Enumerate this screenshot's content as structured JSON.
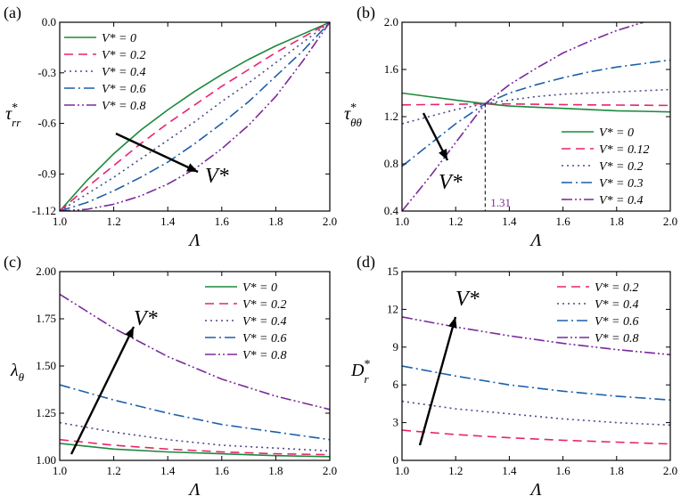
{
  "chart_data": [
    {
      "id": "a",
      "type": "line",
      "panel_label": "(a)",
      "xlabel": "Λ",
      "ylabel_main": "τ",
      "ylabel_sup": "*",
      "ylabel_sub": "rr",
      "xlim": [
        1.0,
        2.0
      ],
      "ylim": [
        -1.12,
        0.0
      ],
      "xticks": [
        "1.0",
        "1.2",
        "1.4",
        "1.6",
        "1.8",
        "2.0"
      ],
      "yticks": [
        {
          "v": 0.0,
          "label": "0.0"
        },
        {
          "v": -0.3,
          "label": "-0.3"
        },
        {
          "v": -0.6,
          "label": "-0.6"
        },
        {
          "v": -0.9,
          "label": "-0.9"
        },
        {
          "v": -1.12,
          "label": "-1.12"
        }
      ],
      "legend_position": "top-left",
      "arrow_label": "V*",
      "series": [
        {
          "name": "V* = 0",
          "color": "#1a8a3c",
          "dash": "",
          "x": [
            1.0,
            1.1,
            1.2,
            1.3,
            1.4,
            1.5,
            1.6,
            1.7,
            1.8,
            1.9,
            2.0
          ],
          "y": [
            -1.12,
            -0.94,
            -0.78,
            -0.64,
            -0.52,
            -0.41,
            -0.31,
            -0.22,
            -0.14,
            -0.07,
            0.0
          ]
        },
        {
          "name": "V* = 0.2",
          "color": "#e8246e",
          "dash": "10,6",
          "x": [
            1.0,
            1.1,
            1.2,
            1.3,
            1.4,
            1.5,
            1.6,
            1.7,
            1.8,
            1.9,
            2.0
          ],
          "y": [
            -1.12,
            -0.98,
            -0.85,
            -0.72,
            -0.6,
            -0.49,
            -0.38,
            -0.28,
            -0.18,
            -0.09,
            0.0
          ]
        },
        {
          "name": "V* = 0.4",
          "color": "#4a4a8c",
          "dash": "2,4",
          "x": [
            1.0,
            1.1,
            1.2,
            1.3,
            1.4,
            1.5,
            1.6,
            1.7,
            1.8,
            1.9,
            2.0
          ],
          "y": [
            -1.12,
            -1.02,
            -0.92,
            -0.81,
            -0.7,
            -0.59,
            -0.47,
            -0.36,
            -0.24,
            -0.12,
            0.0
          ]
        },
        {
          "name": "V* = 0.6",
          "color": "#1d5fa8",
          "dash": "12,4,2,4",
          "x": [
            1.0,
            1.1,
            1.2,
            1.3,
            1.4,
            1.5,
            1.6,
            1.7,
            1.8,
            1.9,
            2.0
          ],
          "y": [
            -1.12,
            -1.07,
            -1.0,
            -0.92,
            -0.83,
            -0.72,
            -0.6,
            -0.47,
            -0.32,
            -0.17,
            0.0
          ]
        },
        {
          "name": "V* = 0.8",
          "color": "#7a2a9a",
          "dash": "12,3,2,3,2,3",
          "x": [
            1.0,
            1.1,
            1.2,
            1.3,
            1.4,
            1.5,
            1.6,
            1.7,
            1.8,
            1.9,
            2.0
          ],
          "y": [
            -1.12,
            -1.11,
            -1.08,
            -1.03,
            -0.96,
            -0.87,
            -0.75,
            -0.61,
            -0.44,
            -0.23,
            0.0
          ]
        }
      ]
    },
    {
      "id": "b",
      "type": "line",
      "panel_label": "(b)",
      "xlabel": "Λ",
      "ylabel_main": "τ",
      "ylabel_sup": "*",
      "ylabel_sub": "θθ",
      "xlim": [
        1.0,
        2.0
      ],
      "ylim": [
        0.4,
        2.0
      ],
      "xticks": [
        "1.0",
        "1.2",
        "1.4",
        "1.6",
        "1.8",
        "2.0"
      ],
      "yticks": [
        {
          "v": 0.4,
          "label": "0.4"
        },
        {
          "v": 0.8,
          "label": "0.8"
        },
        {
          "v": 1.2,
          "label": "1.2"
        },
        {
          "v": 1.6,
          "label": "1.6"
        },
        {
          "v": 2.0,
          "label": "2.0"
        }
      ],
      "legend_position": "bottom-right",
      "arrow_label": "V*",
      "annotation": "1.31",
      "annotation_x": 1.31,
      "annotation_y": 1.31,
      "series": [
        {
          "name": "V* = 0",
          "color": "#1a8a3c",
          "dash": "",
          "x": [
            1.0,
            1.1,
            1.2,
            1.31,
            1.4,
            1.5,
            1.6,
            1.7,
            1.8,
            1.9,
            2.0
          ],
          "y": [
            1.4,
            1.37,
            1.34,
            1.31,
            1.29,
            1.28,
            1.27,
            1.26,
            1.25,
            1.245,
            1.24
          ]
        },
        {
          "name": "V* = 0.12",
          "color": "#e8246e",
          "dash": "10,6",
          "x": [
            1.0,
            1.2,
            1.31,
            1.5,
            1.7,
            2.0
          ],
          "y": [
            1.3,
            1.305,
            1.31,
            1.305,
            1.3,
            1.295
          ]
        },
        {
          "name": "V* = 0.2",
          "color": "#4a4a8c",
          "dash": "2,4",
          "x": [
            1.0,
            1.1,
            1.2,
            1.31,
            1.4,
            1.5,
            1.6,
            1.7,
            1.8,
            1.9,
            2.0
          ],
          "y": [
            1.14,
            1.2,
            1.26,
            1.31,
            1.34,
            1.37,
            1.39,
            1.4,
            1.41,
            1.42,
            1.43
          ]
        },
        {
          "name": "V* = 0.3",
          "color": "#1d5fa8",
          "dash": "12,4,2,4",
          "x": [
            1.0,
            1.1,
            1.2,
            1.31,
            1.4,
            1.5,
            1.6,
            1.7,
            1.8,
            1.9,
            2.0
          ],
          "y": [
            0.78,
            0.96,
            1.14,
            1.31,
            1.4,
            1.47,
            1.53,
            1.58,
            1.62,
            1.65,
            1.68
          ]
        },
        {
          "name": "V* = 0.4",
          "color": "#7a2a9a",
          "dash": "12,3,2,3,2,3",
          "x": [
            1.0,
            1.1,
            1.2,
            1.31,
            1.4,
            1.5,
            1.6,
            1.7,
            1.8,
            1.9
          ],
          "y": [
            0.4,
            0.68,
            0.98,
            1.31,
            1.47,
            1.61,
            1.74,
            1.84,
            1.93,
            2.0
          ]
        }
      ]
    },
    {
      "id": "c",
      "type": "line",
      "panel_label": "(c)",
      "xlabel": "Λ",
      "ylabel_main": "λ",
      "ylabel_sup": "",
      "ylabel_sub": "θ",
      "xlim": [
        1.0,
        2.0
      ],
      "ylim": [
        1.0,
        2.0
      ],
      "xticks": [
        "1.0",
        "1.2",
        "1.4",
        "1.6",
        "1.8",
        "2.0"
      ],
      "yticks": [
        {
          "v": 1.0,
          "label": "1.00"
        },
        {
          "v": 1.25,
          "label": "1.25"
        },
        {
          "v": 1.5,
          "label": "1.50"
        },
        {
          "v": 1.75,
          "label": "1.75"
        },
        {
          "v": 2.0,
          "label": "2.00"
        }
      ],
      "legend_position": "top-right",
      "arrow_label": "V*",
      "series": [
        {
          "name": "V* = 0",
          "color": "#1a8a3c",
          "dash": "",
          "x": [
            1.0,
            1.2,
            1.4,
            1.6,
            1.8,
            2.0
          ],
          "y": [
            1.09,
            1.06,
            1.045,
            1.035,
            1.025,
            1.02
          ]
        },
        {
          "name": "V* = 0.2",
          "color": "#e8246e",
          "dash": "10,6",
          "x": [
            1.0,
            1.2,
            1.4,
            1.6,
            1.8,
            2.0
          ],
          "y": [
            1.11,
            1.08,
            1.06,
            1.045,
            1.035,
            1.03
          ]
        },
        {
          "name": "V* = 0.4",
          "color": "#4a4a8c",
          "dash": "2,4",
          "x": [
            1.0,
            1.2,
            1.4,
            1.6,
            1.8,
            2.0
          ],
          "y": [
            1.2,
            1.15,
            1.11,
            1.08,
            1.065,
            1.05
          ]
        },
        {
          "name": "V* = 0.6",
          "color": "#1d5fa8",
          "dash": "12,4,2,4",
          "x": [
            1.0,
            1.2,
            1.4,
            1.6,
            1.8,
            2.0
          ],
          "y": [
            1.4,
            1.32,
            1.25,
            1.19,
            1.15,
            1.11
          ]
        },
        {
          "name": "V* = 0.8",
          "color": "#7a2a9a",
          "dash": "12,3,2,3,2,3",
          "x": [
            1.0,
            1.2,
            1.4,
            1.6,
            1.8,
            2.0
          ],
          "y": [
            1.88,
            1.7,
            1.55,
            1.43,
            1.34,
            1.27
          ]
        }
      ]
    },
    {
      "id": "d",
      "type": "line",
      "panel_label": "(d)",
      "xlabel": "Λ",
      "ylabel_main": "D",
      "ylabel_sup": "*",
      "ylabel_sub": "r",
      "xlim": [
        1.0,
        2.0
      ],
      "ylim": [
        0,
        15
      ],
      "xticks": [
        "1.0",
        "1.2",
        "1.4",
        "1.6",
        "1.8",
        "2.0"
      ],
      "yticks": [
        {
          "v": 0,
          "label": "0"
        },
        {
          "v": 3,
          "label": "3"
        },
        {
          "v": 6,
          "label": "6"
        },
        {
          "v": 9,
          "label": "9"
        },
        {
          "v": 12,
          "label": "12"
        },
        {
          "v": 15,
          "label": "15"
        }
      ],
      "legend_position": "top-right",
      "arrow_label": "V*",
      "series": [
        {
          "name": "V* = 0.2",
          "color": "#e8246e",
          "dash": "10,6",
          "x": [
            1.0,
            1.2,
            1.4,
            1.6,
            1.8,
            2.0
          ],
          "y": [
            2.4,
            2.05,
            1.8,
            1.6,
            1.45,
            1.3
          ]
        },
        {
          "name": "V* = 0.4",
          "color": "#4a4a8c",
          "dash": "2,4",
          "x": [
            1.0,
            1.2,
            1.4,
            1.6,
            1.8,
            2.0
          ],
          "y": [
            4.7,
            4.1,
            3.7,
            3.3,
            3.0,
            2.8
          ]
        },
        {
          "name": "V* = 0.6",
          "color": "#1d5fa8",
          "dash": "12,4,2,4",
          "x": [
            1.0,
            1.2,
            1.4,
            1.6,
            1.8,
            2.0
          ],
          "y": [
            7.5,
            6.7,
            6.0,
            5.5,
            5.1,
            4.8
          ]
        },
        {
          "name": "V* = 0.8",
          "color": "#7a2a9a",
          "dash": "12,3,2,3,2,3",
          "x": [
            1.0,
            1.2,
            1.4,
            1.6,
            1.8,
            2.0
          ],
          "y": [
            11.4,
            10.6,
            9.9,
            9.3,
            8.8,
            8.4
          ]
        }
      ]
    }
  ]
}
